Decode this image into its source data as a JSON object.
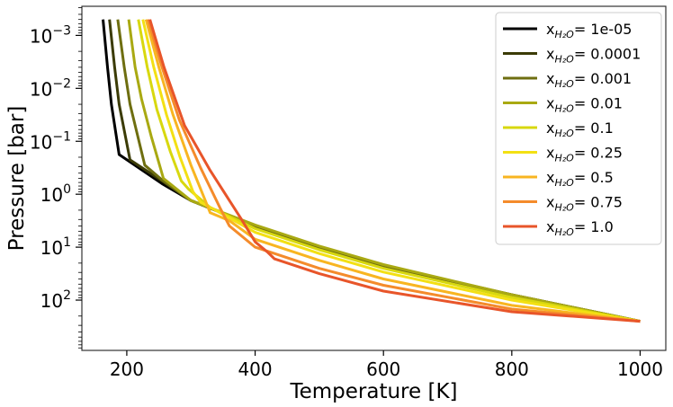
{
  "chart_data": {
    "type": "line",
    "xlabel": "Temperature [K]",
    "ylabel": "Pressure [bar]",
    "xlim": [
      130,
      1040
    ],
    "ylim_log10": [
      -3.55,
      2.95
    ],
    "y_axis_inverted": true,
    "y_scale": "log",
    "grid": false,
    "legend_position": "top-right",
    "x_ticks": [
      {
        "value": 200,
        "label": "200"
      },
      {
        "value": 400,
        "label": "400"
      },
      {
        "value": 600,
        "label": "600"
      },
      {
        "value": 800,
        "label": "800"
      },
      {
        "value": 1000,
        "label": "1000"
      }
    ],
    "y_ticks": [
      {
        "exp": -3,
        "base": "10",
        "sup": "−3"
      },
      {
        "exp": -2,
        "base": "10",
        "sup": "−2"
      },
      {
        "exp": -1,
        "base": "10",
        "sup": "−1"
      },
      {
        "exp": 0,
        "base": "10",
        "sup": "0"
      },
      {
        "exp": 1,
        "base": "10",
        "sup": "1"
      },
      {
        "exp": 2,
        "base": "10",
        "sup": "2"
      }
    ],
    "legend_prefix": "x",
    "legend_subscript": "H₂O",
    "series": [
      {
        "name": "1e-05",
        "color": "#000000",
        "points": [
          [
            163,
            -3.3
          ],
          [
            170,
            -2.4
          ],
          [
            176,
            -1.7
          ],
          [
            188,
            -0.75
          ],
          [
            255,
            -0.2
          ],
          [
            300,
            0.12
          ],
          [
            400,
            0.6
          ],
          [
            500,
            1.0
          ],
          [
            600,
            1.35
          ],
          [
            800,
            1.9
          ],
          [
            1000,
            2.4
          ]
        ]
      },
      {
        "name": "0.0001",
        "color": "#3b3b06",
        "points": [
          [
            173,
            -3.3
          ],
          [
            181,
            -2.4
          ],
          [
            188,
            -1.7
          ],
          [
            205,
            -0.65
          ],
          [
            255,
            -0.25
          ],
          [
            300,
            0.12
          ],
          [
            400,
            0.6
          ],
          [
            500,
            1.0
          ],
          [
            600,
            1.35
          ],
          [
            800,
            1.9
          ],
          [
            1000,
            2.4
          ]
        ]
      },
      {
        "name": "0.001",
        "color": "#6e6e10",
        "points": [
          [
            186,
            -3.3
          ],
          [
            196,
            -2.4
          ],
          [
            205,
            -1.7
          ],
          [
            228,
            -0.55
          ],
          [
            255,
            -0.27
          ],
          [
            300,
            0.12
          ],
          [
            400,
            0.6
          ],
          [
            500,
            1.0
          ],
          [
            600,
            1.35
          ],
          [
            800,
            1.9
          ],
          [
            1000,
            2.4
          ]
        ]
      },
      {
        "name": "0.01",
        "color": "#a9a912",
        "points": [
          [
            203,
            -3.3
          ],
          [
            213,
            -2.4
          ],
          [
            223,
            -1.8
          ],
          [
            238,
            -1.1
          ],
          [
            257,
            -0.3
          ],
          [
            300,
            0.12
          ],
          [
            400,
            0.58
          ],
          [
            500,
            0.98
          ],
          [
            600,
            1.33
          ],
          [
            800,
            1.9
          ],
          [
            1000,
            2.4
          ]
        ]
      },
      {
        "name": "0.1",
        "color": "#d8d80f",
        "points": [
          [
            218,
            -3.3
          ],
          [
            232,
            -2.4
          ],
          [
            247,
            -1.6
          ],
          [
            268,
            -0.8
          ],
          [
            285,
            -0.25
          ],
          [
            296,
            -0.1
          ],
          [
            330,
            0.25
          ],
          [
            400,
            0.65
          ],
          [
            500,
            1.05
          ],
          [
            600,
            1.4
          ],
          [
            800,
            1.95
          ],
          [
            1000,
            2.4
          ]
        ]
      },
      {
        "name": "0.25",
        "color": "#f3e014",
        "points": [
          [
            225,
            -3.3
          ],
          [
            242,
            -2.4
          ],
          [
            262,
            -1.5
          ],
          [
            283,
            -0.7
          ],
          [
            303,
            -0.05
          ],
          [
            315,
            0.15
          ],
          [
            350,
            0.38
          ],
          [
            400,
            0.72
          ],
          [
            500,
            1.12
          ],
          [
            600,
            1.47
          ],
          [
            800,
            2.0
          ],
          [
            1000,
            2.4
          ]
        ]
      },
      {
        "name": "0.5",
        "color": "#f8b521",
        "points": [
          [
            230,
            -3.3
          ],
          [
            250,
            -2.4
          ],
          [
            272,
            -1.5
          ],
          [
            300,
            -0.55
          ],
          [
            320,
            0.05
          ],
          [
            330,
            0.35
          ],
          [
            360,
            0.5
          ],
          [
            400,
            0.85
          ],
          [
            500,
            1.25
          ],
          [
            600,
            1.6
          ],
          [
            800,
            2.1
          ],
          [
            1000,
            2.4
          ]
        ]
      },
      {
        "name": "0.75",
        "color": "#f48b2b",
        "points": [
          [
            233,
            -3.3
          ],
          [
            255,
            -2.4
          ],
          [
            282,
            -1.4
          ],
          [
            315,
            -0.5
          ],
          [
            345,
            0.25
          ],
          [
            360,
            0.6
          ],
          [
            400,
            1.0
          ],
          [
            500,
            1.4
          ],
          [
            600,
            1.72
          ],
          [
            800,
            2.17
          ],
          [
            1000,
            2.4
          ]
        ]
      },
      {
        "name": "1.0",
        "color": "#e8552a",
        "points": [
          [
            236,
            -3.3
          ],
          [
            258,
            -2.4
          ],
          [
            290,
            -1.3
          ],
          [
            330,
            -0.45
          ],
          [
            380,
            0.5
          ],
          [
            400,
            0.9
          ],
          [
            420,
            1.1
          ],
          [
            430,
            1.22
          ],
          [
            500,
            1.5
          ],
          [
            600,
            1.83
          ],
          [
            800,
            2.22
          ],
          [
            1000,
            2.4
          ]
        ]
      }
    ]
  }
}
